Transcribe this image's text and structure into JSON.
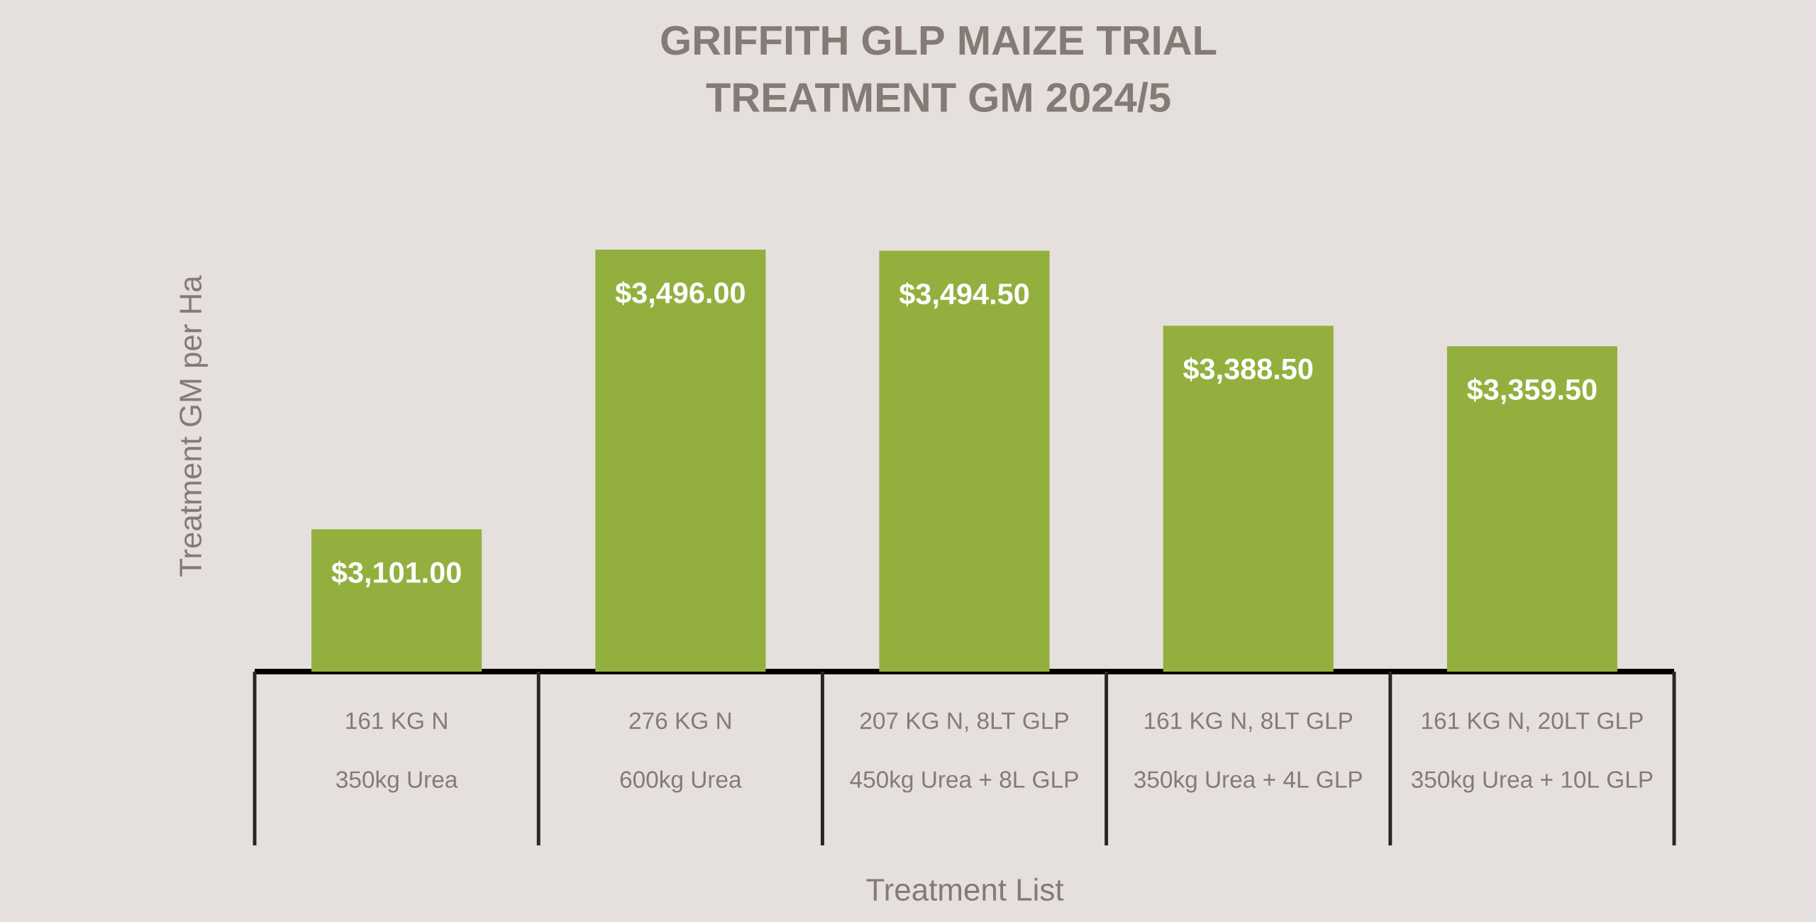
{
  "chart_data": {
    "type": "bar",
    "title": "GRIFFITH GLP MAIZE TRIAL",
    "subtitle": "TREATMENT GM 2024/5",
    "xlabel": "Treatment List",
    "ylabel": "Treatment GM per Ha",
    "categories": [
      "161 KG N",
      "276 KG N",
      "207 KG N, 8LT GLP",
      "161 KG N, 8LT GLP",
      "161 KG N, 20LT GLP"
    ],
    "annotations": [
      "350kg Urea",
      "600kg Urea",
      "450kg Urea + 8L GLP",
      "350kg Urea + 4L GLP",
      "350kg Urea + 10L GLP"
    ],
    "values": [
      3101.0,
      3496.0,
      3494.5,
      3388.5,
      3359.5
    ],
    "value_labels": [
      "$3,101.00",
      "$3,496.00",
      "$3,494.50",
      "$3,388.50",
      "$3,359.50"
    ],
    "color": "#93b03f",
    "ylim": [
      2900,
      3496
    ]
  }
}
